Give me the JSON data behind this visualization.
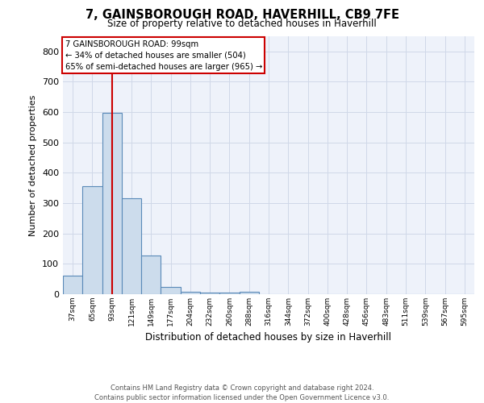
{
  "title": "7, GAINSBOROUGH ROAD, HAVERHILL, CB9 7FE",
  "subtitle": "Size of property relative to detached houses in Haverhill",
  "xlabel": "Distribution of detached houses by size in Haverhill",
  "ylabel": "Number of detached properties",
  "footer_line1": "Contains HM Land Registry data © Crown copyright and database right 2024.",
  "footer_line2": "Contains public sector information licensed under the Open Government Licence v3.0.",
  "bar_color": "#ccdcec",
  "bar_edge_color": "#5a8ab8",
  "grid_color": "#d0d8e8",
  "background_color": "#eef2fa",
  "vline_color": "#cc0000",
  "vline_x": 2.0,
  "annotation_text_line1": "7 GAINSBOROUGH ROAD: 99sqm",
  "annotation_text_line2": "← 34% of detached houses are smaller (504)",
  "annotation_text_line3": "65% of semi-detached houses are larger (965) →",
  "categories": [
    "37sqm",
    "65sqm",
    "93sqm",
    "121sqm",
    "149sqm",
    "177sqm",
    "204sqm",
    "232sqm",
    "260sqm",
    "288sqm",
    "316sqm",
    "344sqm",
    "372sqm",
    "400sqm",
    "428sqm",
    "456sqm",
    "483sqm",
    "511sqm",
    "539sqm",
    "567sqm",
    "595sqm"
  ],
  "values": [
    62,
    355,
    597,
    315,
    128,
    25,
    8,
    5,
    6,
    8,
    0,
    0,
    0,
    0,
    0,
    0,
    0,
    0,
    0,
    0,
    0
  ],
  "ylim": [
    0,
    850
  ],
  "yticks": [
    0,
    100,
    200,
    300,
    400,
    500,
    600,
    700,
    800
  ]
}
